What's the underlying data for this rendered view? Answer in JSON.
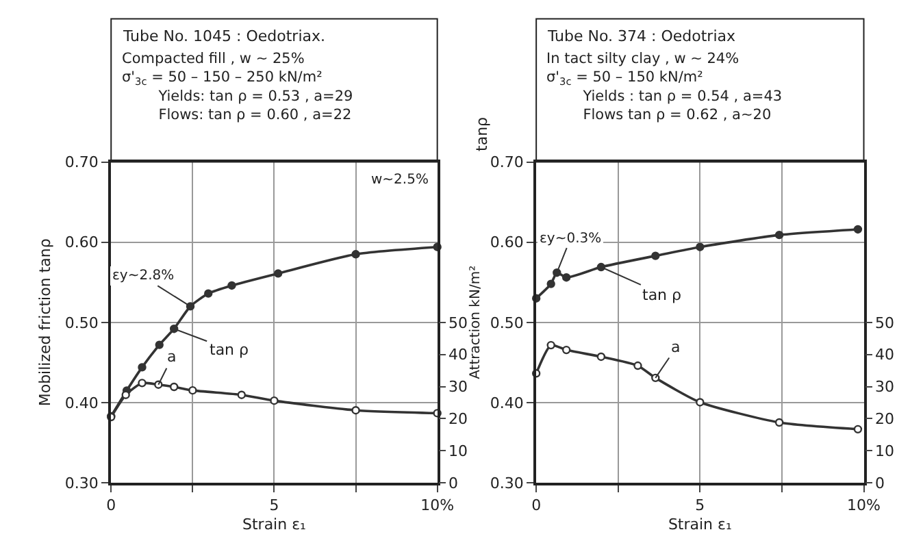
{
  "chart_data": [
    {
      "type": "line",
      "title": "Tube No. 1045 : Oedotriax.",
      "subtitle": "Compacted fill , w ~ 25%\nσ'$_{3c}$ = 50 – 150 – 250 kN/m²\n        Yields: tan ρ = 0.53 , a=29\n        Flows: tan ρ = 0.60 , a=22",
      "xlabel": "Strain ε₁",
      "ylabel": "Mobilized friction tanρ",
      "y2label": "Attraction kN/m²",
      "series": [
        {
          "name": "tan ρ",
          "color": "#333333",
          "x": [
            0,
            0.48,
            0.95,
            1.48,
            1.93,
            2.43,
            2.98,
            3.7,
            5.12,
            7.5,
            10
          ],
          "values": [
            0.383,
            0.415,
            0.444,
            0.472,
            0.492,
            0.52,
            0.536,
            0.546,
            0.561,
            0.585,
            0.594
          ]
        },
        {
          "name": "a",
          "color": "#333333",
          "axis": "y2",
          "x": [
            0,
            0.45,
            0.95,
            1.45,
            1.93,
            2.5,
            4.0,
            5.0,
            7.5,
            10
          ],
          "values": [
            20.5,
            27.4,
            31.1,
            30.6,
            29.9,
            28.8,
            27.4,
            25.6,
            22.6,
            21.7
          ]
        }
      ],
      "annotations": [
        "w~2.5%",
        {
          "text": "εy~2.8%",
          "x": 2.43,
          "y": 0.52
        }
      ],
      "xlim": [
        0,
        10
      ],
      "xticks": [
        0,
        {
          "value": 2.5,
          "label": null
        },
        5,
        {
          "value": 7.5,
          "label": null
        },
        {
          "value": 10,
          "label": "10%"
        }
      ],
      "ylim": [
        0.3,
        0.7
      ],
      "yticks": [
        {
          "value": 0.3,
          "label": "0.30"
        },
        {
          "value": 0.4,
          "label": "0.40"
        },
        {
          "value": 0.5,
          "label": "0.50"
        },
        {
          "value": 0.6,
          "label": "0.60"
        },
        {
          "value": 0.7,
          "label": "0.70"
        }
      ],
      "y2lim": [
        0,
        100
      ],
      "y2ticks": [
        0,
        10,
        20,
        30,
        40,
        50
      ],
      "grid": true,
      "marker": "circle",
      "line_style": "solid"
    },
    {
      "type": "line",
      "title": "Tube No. 374 : Oedotriax",
      "subtitle": "In tact silty clay , w ~ 24%\nσ'$_{3c}$ = 50 – 150 kN/m²\n        Yields : tan ρ = 0.54 , a=43\n        Flows tan ρ = 0.62 , a~20",
      "xlabel": "Strain ε₁",
      "ylabel": "tanρ",
      "series": [
        {
          "name": "tan ρ",
          "color": "#333333",
          "x": [
            0,
            0.45,
            0.63,
            0.92,
            1.98,
            3.64,
            5.0,
            7.42,
            9.82
          ],
          "values": [
            0.53,
            0.548,
            0.562,
            0.556,
            0.569,
            0.583,
            0.594,
            0.609,
            0.616
          ]
        },
        {
          "name": "a",
          "color": "#333333",
          "axis": "y2",
          "x": [
            0,
            0.45,
            0.92,
            1.98,
            3.1,
            3.64,
            5.0,
            7.42,
            9.82
          ],
          "values": [
            34.1,
            42.9,
            41.4,
            39.3,
            36.5,
            32.7,
            25.1,
            18.8,
            16.7
          ]
        }
      ],
      "annotations": [
        {
          "text": "εy~0.3%",
          "x": 0.63,
          "y": 0.562
        }
      ],
      "xlim": [
        0,
        10
      ],
      "xticks": [
        0,
        {
          "value": 2.5,
          "label": null
        },
        5,
        {
          "value": 7.5,
          "label": null
        },
        {
          "value": 10,
          "label": "10%"
        }
      ],
      "ylim": [
        0.3,
        0.7
      ],
      "yticks": [
        {
          "value": 0.3,
          "label": "0.30"
        },
        {
          "value": 0.4,
          "label": "0.40"
        },
        {
          "value": 0.5,
          "label": "0.50"
        },
        {
          "value": 0.6,
          "label": "0.60"
        },
        {
          "value": 0.7,
          "label": "0.70"
        }
      ],
      "y2lim": [
        0,
        100
      ],
      "y2ticks": [
        0,
        10,
        20,
        30,
        40,
        50
      ],
      "grid": true,
      "marker": "circle",
      "line_style": "solid"
    }
  ]
}
